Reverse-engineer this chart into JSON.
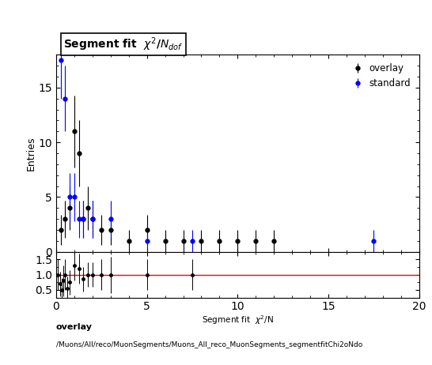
{
  "ylabel_main": "Entries",
  "xlim": [
    0,
    20
  ],
  "ylim_main": [
    0,
    18
  ],
  "ylim_ratio": [
    0.25,
    1.75
  ],
  "overlay_x": [
    0.25,
    0.5,
    0.75,
    1.0,
    1.25,
    1.5,
    1.75,
    2.0,
    2.5,
    3.0,
    4.0,
    5.0,
    6.0,
    7.0,
    8.0,
    9.0,
    10.0,
    11.0,
    12.0
  ],
  "overlay_y": [
    2.0,
    3.0,
    4.0,
    11.0,
    9.0,
    3.0,
    4.0,
    3.0,
    2.0,
    2.0,
    1.0,
    2.0,
    1.0,
    1.0,
    1.0,
    1.0,
    1.0,
    1.0,
    1.0
  ],
  "overlay_yerr": [
    1.4,
    1.7,
    2.0,
    3.3,
    3.0,
    1.7,
    2.0,
    1.7,
    1.4,
    1.4,
    1.0,
    1.4,
    1.0,
    1.0,
    1.0,
    1.0,
    1.0,
    1.0,
    1.0
  ],
  "standard_x": [
    0.25,
    0.5,
    0.75,
    1.0,
    1.25,
    1.5,
    2.0,
    3.0,
    5.0,
    7.5,
    17.5
  ],
  "standard_y": [
    17.5,
    14.0,
    5.0,
    5.0,
    3.0,
    3.0,
    3.0,
    3.0,
    1.0,
    1.0,
    1.0
  ],
  "standard_yerr": [
    3.5,
    3.0,
    2.2,
    2.2,
    1.7,
    1.7,
    1.7,
    1.7,
    1.0,
    1.0,
    1.0
  ],
  "ratio_x": [
    0.1,
    0.2,
    0.3,
    0.4,
    0.5,
    0.6,
    0.75,
    1.0,
    1.25,
    1.5,
    1.75,
    2.0,
    2.5,
    3.0,
    5.0,
    7.5
  ],
  "ratio_y": [
    1.0,
    0.7,
    0.5,
    0.8,
    1.0,
    0.55,
    0.75,
    1.3,
    1.2,
    0.85,
    1.0,
    1.0,
    1.0,
    1.0,
    1.0,
    1.0
  ],
  "ratio_yerr": [
    0.5,
    0.4,
    0.4,
    0.5,
    0.5,
    0.4,
    0.4,
    0.5,
    0.5,
    0.4,
    0.4,
    0.4,
    0.5,
    0.6,
    0.5,
    0.5
  ],
  "overlay_color": "#000000",
  "standard_color": "#0000ff",
  "ratio_line_color": "red",
  "legend_overlay": "overlay",
  "legend_standard": "standard",
  "footer_line1": "overlay",
  "footer_line2": "/Muons/All/reco/MuonSegments/Muons_All_reco_MuonSegments_segmentfitChi2oNdo",
  "ratio_yticks": [
    0.5,
    1.0,
    1.5
  ],
  "main_yticks": [
    0,
    5,
    10,
    15
  ],
  "xticks": [
    0,
    5,
    10,
    15,
    20
  ]
}
